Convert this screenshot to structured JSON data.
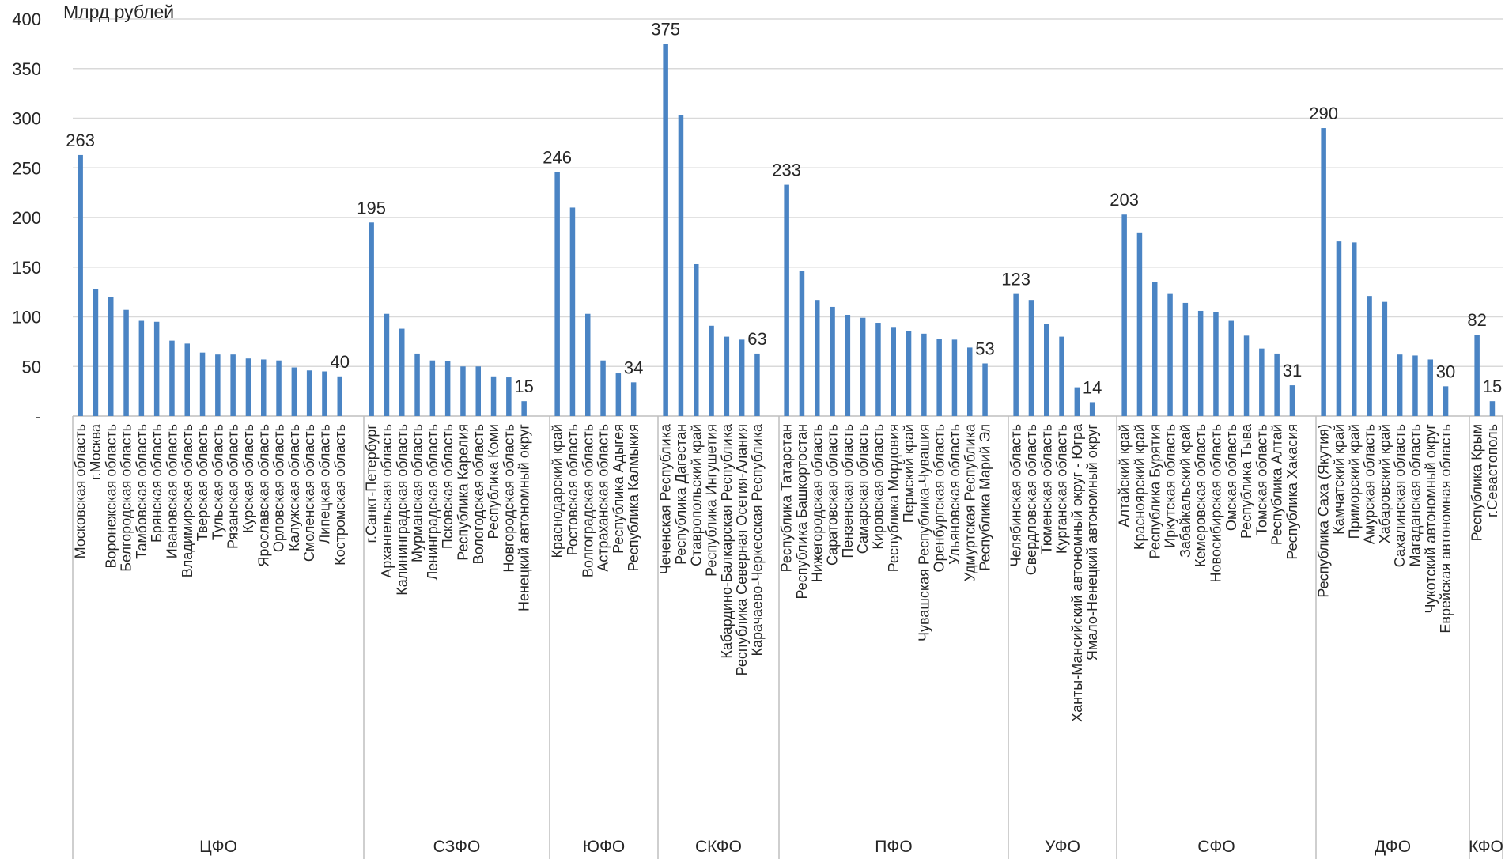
{
  "chart_data": {
    "type": "bar",
    "ylabel": "Млрд рублей",
    "ylim": [
      0,
      400
    ],
    "yticks": [
      "-",
      "50",
      "100",
      "150",
      "200",
      "250",
      "300",
      "350",
      "400"
    ],
    "grid": true,
    "colors": {
      "bar": "#4a84c4",
      "grid": "#d9d9d9",
      "axis": "#bfbfbf",
      "text": "#262626"
    },
    "groups": [
      {
        "name": "ЦФО",
        "items": [
          {
            "label": "Московская область",
            "value": 263,
            "show_value": true
          },
          {
            "label": "г.Москва",
            "value": 128
          },
          {
            "label": "Воронежская область",
            "value": 120
          },
          {
            "label": "Белгородская область",
            "value": 107
          },
          {
            "label": "Тамбовская область",
            "value": 96
          },
          {
            "label": "Брянская область",
            "value": 95
          },
          {
            "label": "Ивановская область",
            "value": 76
          },
          {
            "label": "Владимирская область",
            "value": 73
          },
          {
            "label": "Тверская область",
            "value": 64
          },
          {
            "label": "Тульская область",
            "value": 62
          },
          {
            "label": "Рязанская область",
            "value": 62
          },
          {
            "label": "Курская область",
            "value": 58
          },
          {
            "label": "Ярославская область",
            "value": 57
          },
          {
            "label": "Орловская область",
            "value": 56
          },
          {
            "label": "Калужская область",
            "value": 49
          },
          {
            "label": "Смоленская область",
            "value": 46
          },
          {
            "label": "Липецкая область",
            "value": 45
          },
          {
            "label": "Костромская область",
            "value": 40,
            "show_value": true
          }
        ]
      },
      {
        "name": "СЗФО",
        "items": [
          {
            "label": "г.Санкт-Петербург",
            "value": 195,
            "show_value": true
          },
          {
            "label": "Архангельская область",
            "value": 103
          },
          {
            "label": "Калининградская область",
            "value": 88
          },
          {
            "label": "Мурманская область",
            "value": 63
          },
          {
            "label": "Ленинградская область",
            "value": 56
          },
          {
            "label": "Псковская область",
            "value": 55
          },
          {
            "label": "Республика Карелия",
            "value": 50
          },
          {
            "label": "Вологодская область",
            "value": 50
          },
          {
            "label": "Республика Коми",
            "value": 40
          },
          {
            "label": "Новгородская область",
            "value": 39
          },
          {
            "label": "Ненецкий автономный округ",
            "value": 15,
            "show_value": true
          }
        ]
      },
      {
        "name": "ЮФО",
        "items": [
          {
            "label": "Краснодарский край",
            "value": 246,
            "show_value": true
          },
          {
            "label": "Ростовская область",
            "value": 210
          },
          {
            "label": "Волгоградская область",
            "value": 103
          },
          {
            "label": "Астраханская область",
            "value": 56
          },
          {
            "label": "Республика Адыгея",
            "value": 43
          },
          {
            "label": "Республика Калмыкия",
            "value": 34,
            "show_value": true
          }
        ]
      },
      {
        "name": "СКФО",
        "items": [
          {
            "label": "Чеченская Республика",
            "value": 375,
            "show_value": true
          },
          {
            "label": "Республика Дагестан",
            "value": 303
          },
          {
            "label": "Ставропольский край",
            "value": 153
          },
          {
            "label": "Республика Ингушетия",
            "value": 91
          },
          {
            "label": "Кабардино-Балкарская Республика",
            "value": 80
          },
          {
            "label": "Республика Северная Осетия-Алания",
            "value": 77
          },
          {
            "label": "Карачаево-Черкесская Республика",
            "value": 63,
            "show_value": true
          }
        ]
      },
      {
        "name": "ПФО",
        "items": [
          {
            "label": "Республика Татарстан",
            "value": 233,
            "show_value": true
          },
          {
            "label": "Республика Башкортостан",
            "value": 146
          },
          {
            "label": "Нижегородская область",
            "value": 117
          },
          {
            "label": "Саратовская область",
            "value": 110
          },
          {
            "label": "Пензенская область",
            "value": 102
          },
          {
            "label": "Самарская область",
            "value": 99
          },
          {
            "label": "Кировская область",
            "value": 94
          },
          {
            "label": "Республика Мордовия",
            "value": 89
          },
          {
            "label": "Пермский край",
            "value": 86
          },
          {
            "label": "Чувашская Республика-Чувашия",
            "value": 83
          },
          {
            "label": "Оренбургская область",
            "value": 78
          },
          {
            "label": "Ульяновская область",
            "value": 77
          },
          {
            "label": "Удмуртская Республика",
            "value": 69
          },
          {
            "label": "Республика Марий Эл",
            "value": 53,
            "show_value": true
          }
        ]
      },
      {
        "name": "УФО",
        "items": [
          {
            "label": "Челябинская область",
            "value": 123,
            "show_value": true
          },
          {
            "label": "Свердловская область",
            "value": 117
          },
          {
            "label": "Тюменская область",
            "value": 93
          },
          {
            "label": "Курганская область",
            "value": 80
          },
          {
            "label": "Ханты-Мансийский автономный округ - Югра",
            "value": 29
          },
          {
            "label": "Ямало-Ненецкий автономный округ",
            "value": 14,
            "show_value": true
          }
        ]
      },
      {
        "name": "СФО",
        "items": [
          {
            "label": "Алтайский край",
            "value": 203,
            "show_value": true
          },
          {
            "label": "Красноярский край",
            "value": 185
          },
          {
            "label": "Республика Бурятия",
            "value": 135
          },
          {
            "label": "Иркутская область",
            "value": 123
          },
          {
            "label": "Забайкальский край",
            "value": 114
          },
          {
            "label": "Кемеровская область",
            "value": 106
          },
          {
            "label": "Новосибирская область",
            "value": 105
          },
          {
            "label": "Омская область",
            "value": 96
          },
          {
            "label": "Республика Тыва",
            "value": 81
          },
          {
            "label": "Томская область",
            "value": 68
          },
          {
            "label": "Республика Алтай",
            "value": 63
          },
          {
            "label": "Республика Хакасия",
            "value": 31,
            "show_value": true
          }
        ]
      },
      {
        "name": "ДФО",
        "items": [
          {
            "label": "Республика Саха (Якутия)",
            "value": 290,
            "show_value": true
          },
          {
            "label": "Камчатский край",
            "value": 176
          },
          {
            "label": "Приморский край",
            "value": 175
          },
          {
            "label": "Амурская область",
            "value": 121
          },
          {
            "label": "Хабаровский край",
            "value": 115
          },
          {
            "label": "Сахалинская область",
            "value": 62
          },
          {
            "label": "Магаданская область",
            "value": 61
          },
          {
            "label": "Чукотский автономный округ",
            "value": 57
          },
          {
            "label": "Еврейская автономная область",
            "value": 30,
            "show_value": true
          }
        ]
      },
      {
        "name": "КФО",
        "items": [
          {
            "label": "Республика Крым",
            "value": 82,
            "show_value": true
          },
          {
            "label": "г.Севастополь",
            "value": 15,
            "show_value": true
          }
        ]
      }
    ]
  }
}
